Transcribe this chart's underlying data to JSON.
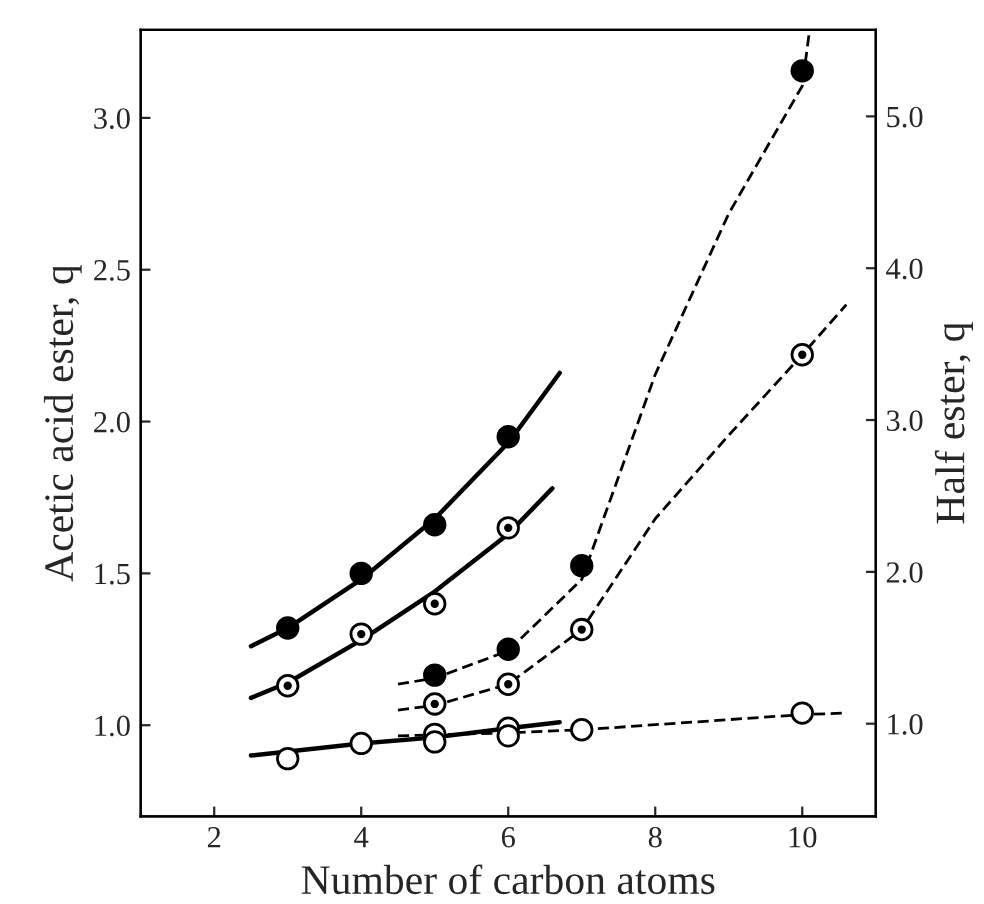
{
  "chart_data": {
    "type": "scatter",
    "xlabel": "Number of carbon atoms",
    "ylabel": "Acetic acid ester, q",
    "y2label": "Half ester, q",
    "xlim": [
      1,
      11
    ],
    "xticks": [
      2,
      4,
      6,
      8,
      10
    ],
    "ylim": [
      0.7,
      3.29
    ],
    "yticks": [
      {
        "value": 1,
        "label": "1.0"
      },
      {
        "value": 1.5,
        "label": "1.5"
      },
      {
        "value": 2,
        "label": "2.0"
      },
      {
        "value": 2.5,
        "label": "2.5"
      },
      {
        "value": 3,
        "label": "3.0"
      }
    ],
    "y2lim": [
      0.39,
      5.57
    ],
    "y2ticks": [
      {
        "value": 1,
        "label": "1.0"
      },
      {
        "value": 2,
        "label": "2.0"
      },
      {
        "value": 3,
        "label": "3.0"
      },
      {
        "value": 4,
        "label": "4.0"
      },
      {
        "value": 5,
        "label": "5.0"
      }
    ],
    "grid": false,
    "legend": false,
    "series": [
      {
        "type": "line",
        "line_style": "solid",
        "marker": "none",
        "color": "#000000",
        "x": [
          2.5,
          3,
          4,
          5,
          6,
          6.7
        ],
        "values": [
          1.26,
          1.32,
          1.48,
          1.68,
          1.93,
          2.16
        ]
      },
      {
        "type": "line",
        "line_style": "solid",
        "marker": "none",
        "color": "#000000",
        "x": [
          2.5,
          3,
          4,
          5,
          6,
          6.6
        ],
        "values": [
          1.09,
          1.14,
          1.28,
          1.44,
          1.63,
          1.78
        ]
      },
      {
        "type": "line",
        "line_style": "solid",
        "marker": "none",
        "color": "#000000",
        "x": [
          2.5,
          4,
          5,
          6,
          6.7
        ],
        "values": [
          0.9,
          0.94,
          0.96,
          0.99,
          1.01
        ]
      },
      {
        "marker": "circle",
        "color": "#000000",
        "x": [
          3,
          4,
          5,
          6
        ],
        "values": [
          1.32,
          1.5,
          1.66,
          1.95
        ]
      },
      {
        "marker": "circle",
        "color": "#fdfdfd",
        "x": [
          3,
          4,
          5,
          6
        ],
        "values": [
          1.13,
          1.3,
          1.4,
          1.65
        ]
      },
      {
        "marker": "circle",
        "color": "#ffffff",
        "x": [
          3,
          4,
          5,
          6
        ],
        "values": [
          0.89,
          0.94,
          0.97,
          0.99
        ]
      },
      {
        "type": "line",
        "axis": "y2",
        "line_style": "dashed",
        "marker": "none",
        "color": "#000000",
        "x": [
          4.5,
          5,
          6,
          7,
          8,
          9,
          10,
          10.1
        ],
        "values": [
          1.26,
          1.3,
          1.48,
          1.95,
          3.3,
          4.36,
          5.2,
          5.57
        ]
      },
      {
        "type": "line",
        "axis": "y2",
        "line_style": "dashed",
        "marker": "none",
        "color": "#000000",
        "x": [
          4.5,
          5,
          6,
          7,
          8,
          9,
          10,
          10.6
        ],
        "values": [
          1.09,
          1.12,
          1.26,
          1.62,
          2.35,
          2.9,
          3.43,
          3.76
        ]
      },
      {
        "type": "line",
        "axis": "y2",
        "line_style": "dashed",
        "marker": "none",
        "color": "#000000",
        "x": [
          4.5,
          6,
          7,
          10,
          10.6
        ],
        "values": [
          0.92,
          0.94,
          0.96,
          1.06,
          1.07
        ]
      },
      {
        "axis": "y2",
        "marker": "circle",
        "color": "#000000",
        "x": [
          5,
          6,
          7,
          10
        ],
        "values": [
          1.32,
          1.49,
          2.04,
          5.3
        ]
      },
      {
        "axis": "y2",
        "marker": "circle",
        "color": "#fdfdfd",
        "x": [
          5,
          6,
          7,
          10
        ],
        "values": [
          1.13,
          1.26,
          1.62,
          3.43
        ]
      },
      {
        "axis": "y2",
        "marker": "circle",
        "color": "#ffffff",
        "x": [
          5,
          6,
          7,
          10
        ],
        "values": [
          0.88,
          0.92,
          0.96,
          1.07
        ]
      }
    ]
  }
}
